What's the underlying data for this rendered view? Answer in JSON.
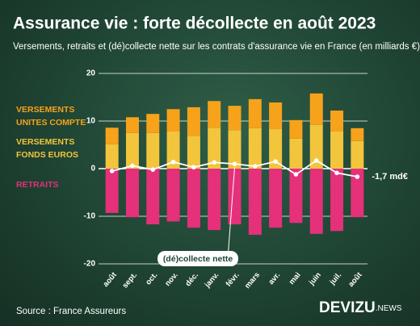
{
  "chart_data": {
    "type": "stacked-bar-line",
    "title": "Assurance vie : forte décollecte en août 2023",
    "subtitle": "Versements, retraits et (dé)collecte nette sur les contrats d'assurance vie en France (en milliards €)",
    "categories": [
      "août",
      "sept.",
      "oct.",
      "nov.",
      "déc.",
      "janv.",
      "févr.",
      "mars",
      "avr.",
      "mai",
      "juin",
      "juil.",
      "août"
    ],
    "series": [
      {
        "name": "VERSEMENTS FONDS EUROS",
        "color": "#f2c53d",
        "values": [
          5.1,
          7.5,
          7.5,
          7.8,
          6.9,
          8.6,
          8.1,
          8.5,
          8.3,
          6.3,
          9.2,
          7.8,
          5.8
        ]
      },
      {
        "name": "VERSEMENTS UNITES COMPTE",
        "color": "#f7a21b",
        "values": [
          3.5,
          3.3,
          4.0,
          4.7,
          6.0,
          5.6,
          5.1,
          6.1,
          5.6,
          3.9,
          6.6,
          4.4,
          2.7
        ]
      },
      {
        "name": "RETRAITS",
        "color": "#e5307a",
        "values": [
          -9.3,
          -10.2,
          -11.7,
          -11.1,
          -12.4,
          -12.9,
          -11.7,
          -13.9,
          -12.4,
          -11.4,
          -13.7,
          -13.1,
          -10.2
        ]
      },
      {
        "name": "(dé)collecte nette",
        "color": "#ffffff",
        "type": "line",
        "values": [
          -0.5,
          0.6,
          -0.2,
          1.4,
          0.3,
          1.3,
          1.0,
          0.5,
          1.5,
          -1.2,
          1.7,
          -0.9,
          -1.7
        ],
        "value_labels": [
          null,
          null,
          null,
          null,
          null,
          null,
          null,
          null,
          null,
          null,
          null,
          null,
          "-1,7 md€"
        ]
      }
    ],
    "ylim": [
      -20,
      20
    ],
    "yticks": [
      -20,
      -10,
      0,
      10,
      20
    ],
    "grid": true,
    "source": "Source : France Assureurs",
    "brand": "DEVIZU",
    "brand_suffix": ".NEWS"
  }
}
